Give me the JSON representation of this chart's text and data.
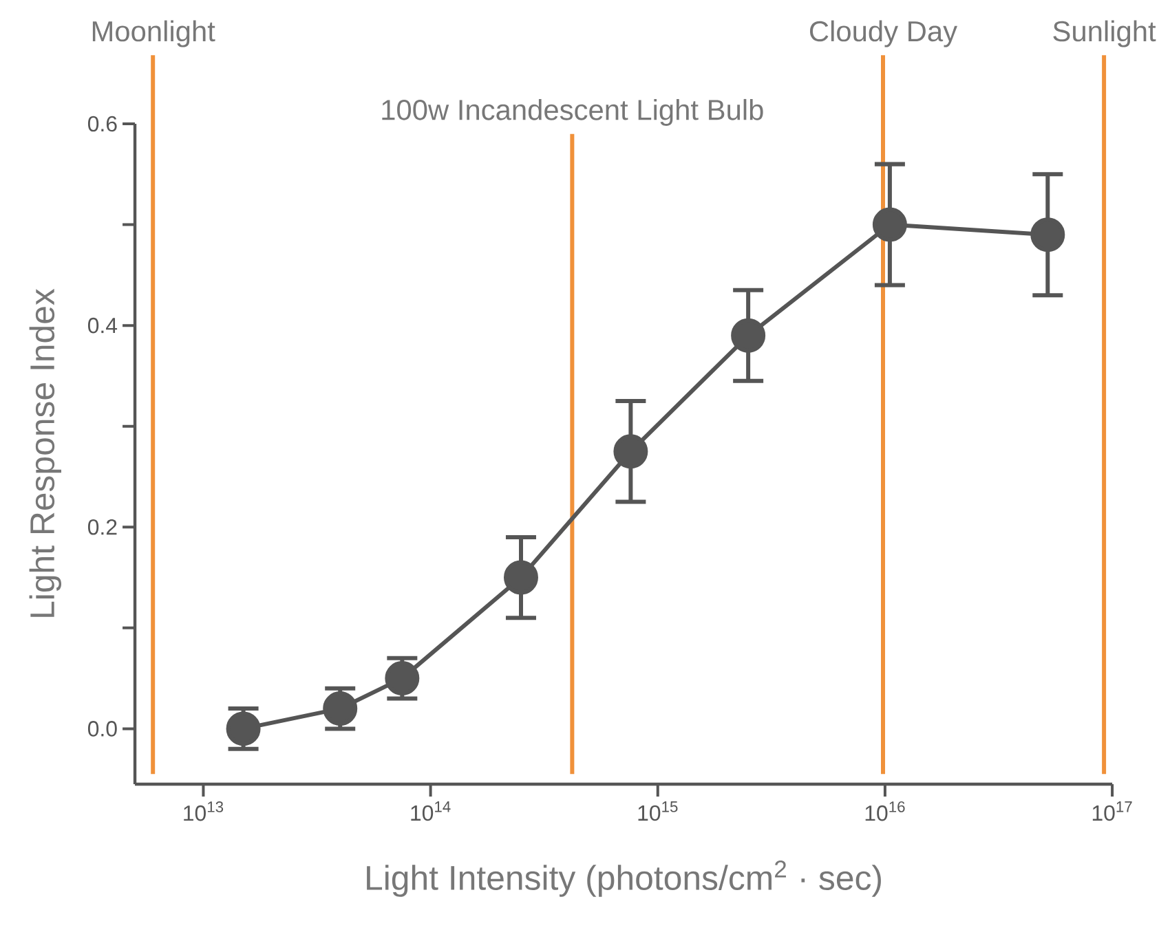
{
  "chart_data": {
    "type": "line",
    "xlabel": "Light Intensity (photons/cm$^{2}$ · sec)",
    "ylabel": "Light Response Index",
    "log": "x",
    "marker": "circle",
    "line_style": "solid",
    "xlim": [
      5000000000000.0,
      1e+17
    ],
    "ylim": [
      -0.055,
      0.6
    ],
    "xticks": [
      {
        "value": 10000000000000.0,
        "label": "10$^{13}$"
      },
      {
        "value": 100000000000000.0,
        "label": "10$^{14}$"
      },
      {
        "value": 1000000000000000.0,
        "label": "10$^{15}$"
      },
      {
        "value": 1e+16,
        "label": "10$^{16}$"
      },
      {
        "value": 1e+17,
        "label": "10$^{17}$"
      }
    ],
    "yticks": [
      {
        "value": 0,
        "label": "0.0"
      },
      {
        "value": 0.1,
        "label": null
      },
      0.2,
      {
        "value": 0.3,
        "label": null
      },
      0.4,
      {
        "value": 0.5,
        "label": null
      },
      0.6
    ],
    "x": [
      15000000000000.0,
      40000000000000.0,
      75000000000000.0,
      250000000000000.0,
      760000000000000.0,
      2500000000000000.0,
      1.05e+16,
      5.2e+16
    ],
    "series": [
      {
        "color": "#555555",
        "values": [
          0.0,
          0.02,
          0.05,
          0.15,
          0.275,
          0.39,
          0.5,
          0.49
        ],
        "errors": [
          0.02,
          0.02,
          0.02,
          0.04,
          0.05,
          0.045,
          [
            0.44,
            0.56
          ],
          [
            0.43,
            0.55
          ]
        ]
      }
    ],
    "ref_lines": [
      {
        "axis": "x",
        "value": 6000000000000.0,
        "label": "Moonlight",
        "color": "#f0913a"
      },
      {
        "axis": "x",
        "value": 420000000000000.0,
        "label": "100w Incandescent Light Bulb",
        "color": "#f0913a"
      },
      {
        "axis": "x",
        "value": 9800000000000000.0,
        "label": "Cloudy Day",
        "color": "#f0913a"
      },
      {
        "axis": "x",
        "value": 9.2e+16,
        "label": "Sunlight",
        "color": "#f0913a"
      }
    ]
  }
}
